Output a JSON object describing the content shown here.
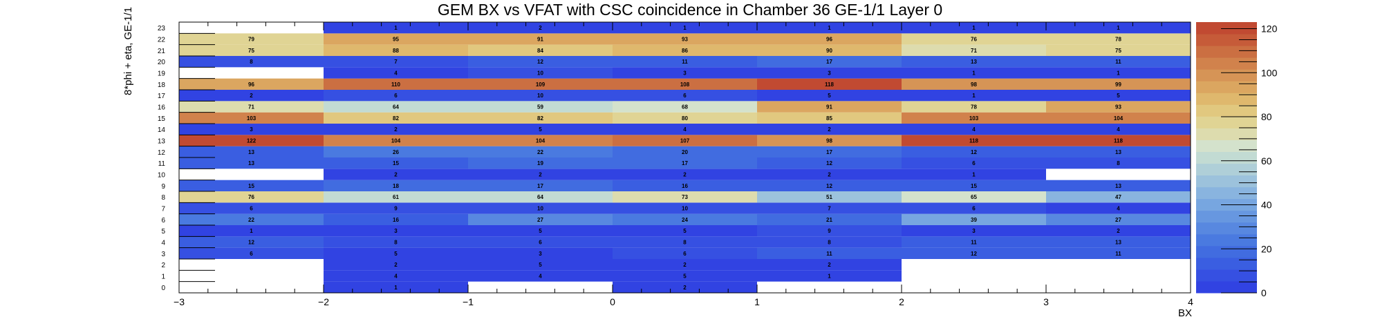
{
  "chart_data": {
    "type": "heatmap",
    "title": "GEM BX vs VFAT with CSC coincidence in Chamber 36 GE-1/1 Layer 0",
    "xlabel": "BX",
    "ylabel": "8*phi + eta, GE-1/1",
    "xlim": [
      -3,
      4
    ],
    "x_ticks": [
      "−3",
      "−2",
      "−1",
      "0",
      "1",
      "2",
      "3",
      "4"
    ],
    "x_bins": [
      -2.5,
      -1.5,
      -0.5,
      0.5,
      1.5,
      2.5,
      3.5
    ],
    "y_bins": [
      0,
      1,
      2,
      3,
      4,
      5,
      6,
      7,
      8,
      9,
      10,
      11,
      12,
      13,
      14,
      15,
      16,
      17,
      18,
      19,
      20,
      21,
      22,
      23
    ],
    "z_range": [
      0,
      123
    ],
    "colorbar_ticks": [
      "0",
      "20",
      "40",
      "60",
      "80",
      "100",
      "120"
    ],
    "values": [
      [
        0,
        1,
        0,
        2,
        0,
        0,
        0
      ],
      [
        0,
        4,
        4,
        5,
        1,
        0,
        0
      ],
      [
        0,
        2,
        5,
        2,
        2,
        0,
        0
      ],
      [
        6,
        5,
        3,
        6,
        11,
        12,
        11
      ],
      [
        12,
        8,
        6,
        8,
        8,
        11,
        13
      ],
      [
        1,
        3,
        5,
        5,
        9,
        3,
        2
      ],
      [
        22,
        16,
        27,
        24,
        21,
        39,
        27
      ],
      [
        6,
        9,
        10,
        10,
        7,
        6,
        4
      ],
      [
        76,
        61,
        64,
        73,
        51,
        65,
        47
      ],
      [
        15,
        18,
        17,
        16,
        12,
        15,
        13
      ],
      [
        0,
        2,
        2,
        2,
        2,
        1,
        0
      ],
      [
        13,
        15,
        19,
        17,
        12,
        6,
        8
      ],
      [
        13,
        26,
        22,
        20,
        17,
        12,
        13
      ],
      [
        122,
        104,
        104,
        107,
        98,
        118,
        118
      ],
      [
        3,
        2,
        5,
        4,
        2,
        4,
        4
      ],
      [
        103,
        82,
        82,
        80,
        85,
        103,
        104
      ],
      [
        71,
        64,
        59,
        68,
        91,
        78,
        93
      ],
      [
        2,
        6,
        10,
        6,
        5,
        1,
        5
      ],
      [
        96,
        110,
        109,
        108,
        118,
        98,
        99
      ],
      [
        0,
        4,
        10,
        3,
        3,
        1,
        1
      ],
      [
        8,
        7,
        12,
        11,
        17,
        13,
        11
      ],
      [
        75,
        88,
        84,
        86,
        90,
        71,
        75
      ],
      [
        79,
        95,
        91,
        93,
        96,
        76,
        78
      ],
      [
        0,
        1,
        2,
        1,
        1,
        1,
        1
      ]
    ],
    "palette": [
      "#3143e2",
      "#3650e2",
      "#3a5ee1",
      "#416ce0",
      "#4a7ae0",
      "#5888e0",
      "#6797e0",
      "#77a6e0",
      "#89b4df",
      "#9cc2dc",
      "#afcfd8",
      "#c2dbd3",
      "#d4e2cc",
      "#dddcae",
      "#e0d494",
      "#e1c87f",
      "#dfb86d",
      "#dba660",
      "#d69456",
      "#d1824c",
      "#cb6f42",
      "#c65b39",
      "#c14a32"
    ]
  }
}
